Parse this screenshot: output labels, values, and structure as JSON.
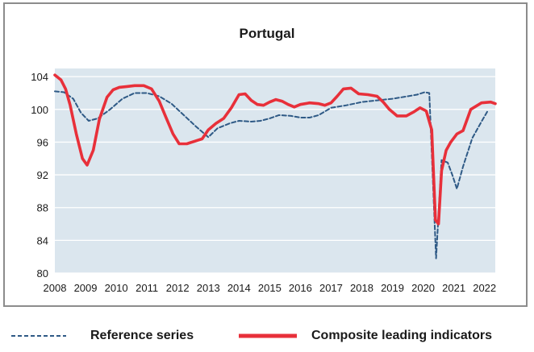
{
  "chart_data": {
    "type": "line",
    "title": "Portugal",
    "xlabel": "",
    "ylabel": "",
    "xlim": [
      2008,
      2022.35
    ],
    "ylim": [
      80,
      105
    ],
    "y_ticks": [
      80,
      84,
      88,
      92,
      96,
      100,
      104
    ],
    "x_ticks": [
      "2008",
      "2009",
      "2010",
      "2011",
      "2012",
      "2013",
      "2014",
      "2015",
      "2016",
      "2017",
      "2018",
      "2019",
      "2020",
      "2021",
      "2022"
    ],
    "grid": true,
    "legend_position": "bottom",
    "series": [
      {
        "name": "Reference series",
        "style": "dashed",
        "color": "#2f5a86",
        "x": [
          2008.0,
          2008.3,
          2008.6,
          2008.85,
          2009.1,
          2009.4,
          2009.8,
          2010.2,
          2010.6,
          2011.0,
          2011.4,
          2011.8,
          2012.2,
          2012.6,
          2013.0,
          2013.3,
          2013.7,
          2014.0,
          2014.4,
          2014.7,
          2015.0,
          2015.3,
          2015.7,
          2016.0,
          2016.3,
          2016.6,
          2017.0,
          2017.5,
          2018.0,
          2018.5,
          2019.0,
          2019.5,
          2019.8,
          2020.05,
          2020.2,
          2020.42,
          2020.6,
          2020.8,
          2020.95,
          2021.1,
          2021.3,
          2021.6,
          2021.9,
          2022.1
        ],
        "y": [
          102.2,
          102.1,
          101.3,
          99.6,
          98.6,
          98.9,
          100.0,
          101.3,
          102.0,
          102.0,
          101.6,
          100.7,
          99.3,
          97.9,
          96.6,
          97.7,
          98.3,
          98.6,
          98.5,
          98.6,
          98.9,
          99.3,
          99.2,
          99.0,
          99.0,
          99.3,
          100.2,
          100.5,
          100.9,
          101.1,
          101.3,
          101.6,
          101.8,
          102.1,
          102.0,
          81.8,
          93.8,
          93.5,
          92.0,
          90.3,
          93.0,
          96.5,
          98.5,
          99.8
        ]
      },
      {
        "name": "Composite leading indicators",
        "style": "solid",
        "color": "#e8303a",
        "x": [
          2008.0,
          2008.2,
          2008.35,
          2008.5,
          2008.7,
          2008.9,
          2009.05,
          2009.25,
          2009.45,
          2009.7,
          2009.9,
          2010.1,
          2010.35,
          2010.6,
          2010.9,
          2011.15,
          2011.4,
          2011.6,
          2011.85,
          2012.05,
          2012.3,
          2012.55,
          2012.8,
          2013.0,
          2013.25,
          2013.5,
          2013.75,
          2014.0,
          2014.2,
          2014.4,
          2014.6,
          2014.8,
          2015.0,
          2015.2,
          2015.4,
          2015.6,
          2015.8,
          2016.0,
          2016.3,
          2016.6,
          2016.8,
          2017.0,
          2017.2,
          2017.4,
          2017.65,
          2017.9,
          2018.2,
          2018.5,
          2018.7,
          2018.9,
          2019.15,
          2019.45,
          2019.7,
          2019.9,
          2020.1,
          2020.28,
          2020.4,
          2020.5,
          2020.6,
          2020.75,
          2020.9,
          2021.1,
          2021.3,
          2021.55,
          2021.9,
          2022.2,
          2022.35
        ],
        "y": [
          104.2,
          103.6,
          102.5,
          100.5,
          97.0,
          94.0,
          93.2,
          95.0,
          98.8,
          101.5,
          102.4,
          102.7,
          102.8,
          102.9,
          102.9,
          102.5,
          101.0,
          99.2,
          97.0,
          95.8,
          95.8,
          96.1,
          96.4,
          97.5,
          98.3,
          98.9,
          100.2,
          101.8,
          101.9,
          101.1,
          100.6,
          100.5,
          100.9,
          101.2,
          101.0,
          100.6,
          100.3,
          100.6,
          100.8,
          100.7,
          100.5,
          100.8,
          101.6,
          102.5,
          102.6,
          101.9,
          101.8,
          101.6,
          100.9,
          100.0,
          99.2,
          99.2,
          99.7,
          100.2,
          99.8,
          97.5,
          86.5,
          86.0,
          92.5,
          95.0,
          96.0,
          97.0,
          97.4,
          100.0,
          100.8,
          100.9,
          100.7
        ]
      }
    ]
  }
}
